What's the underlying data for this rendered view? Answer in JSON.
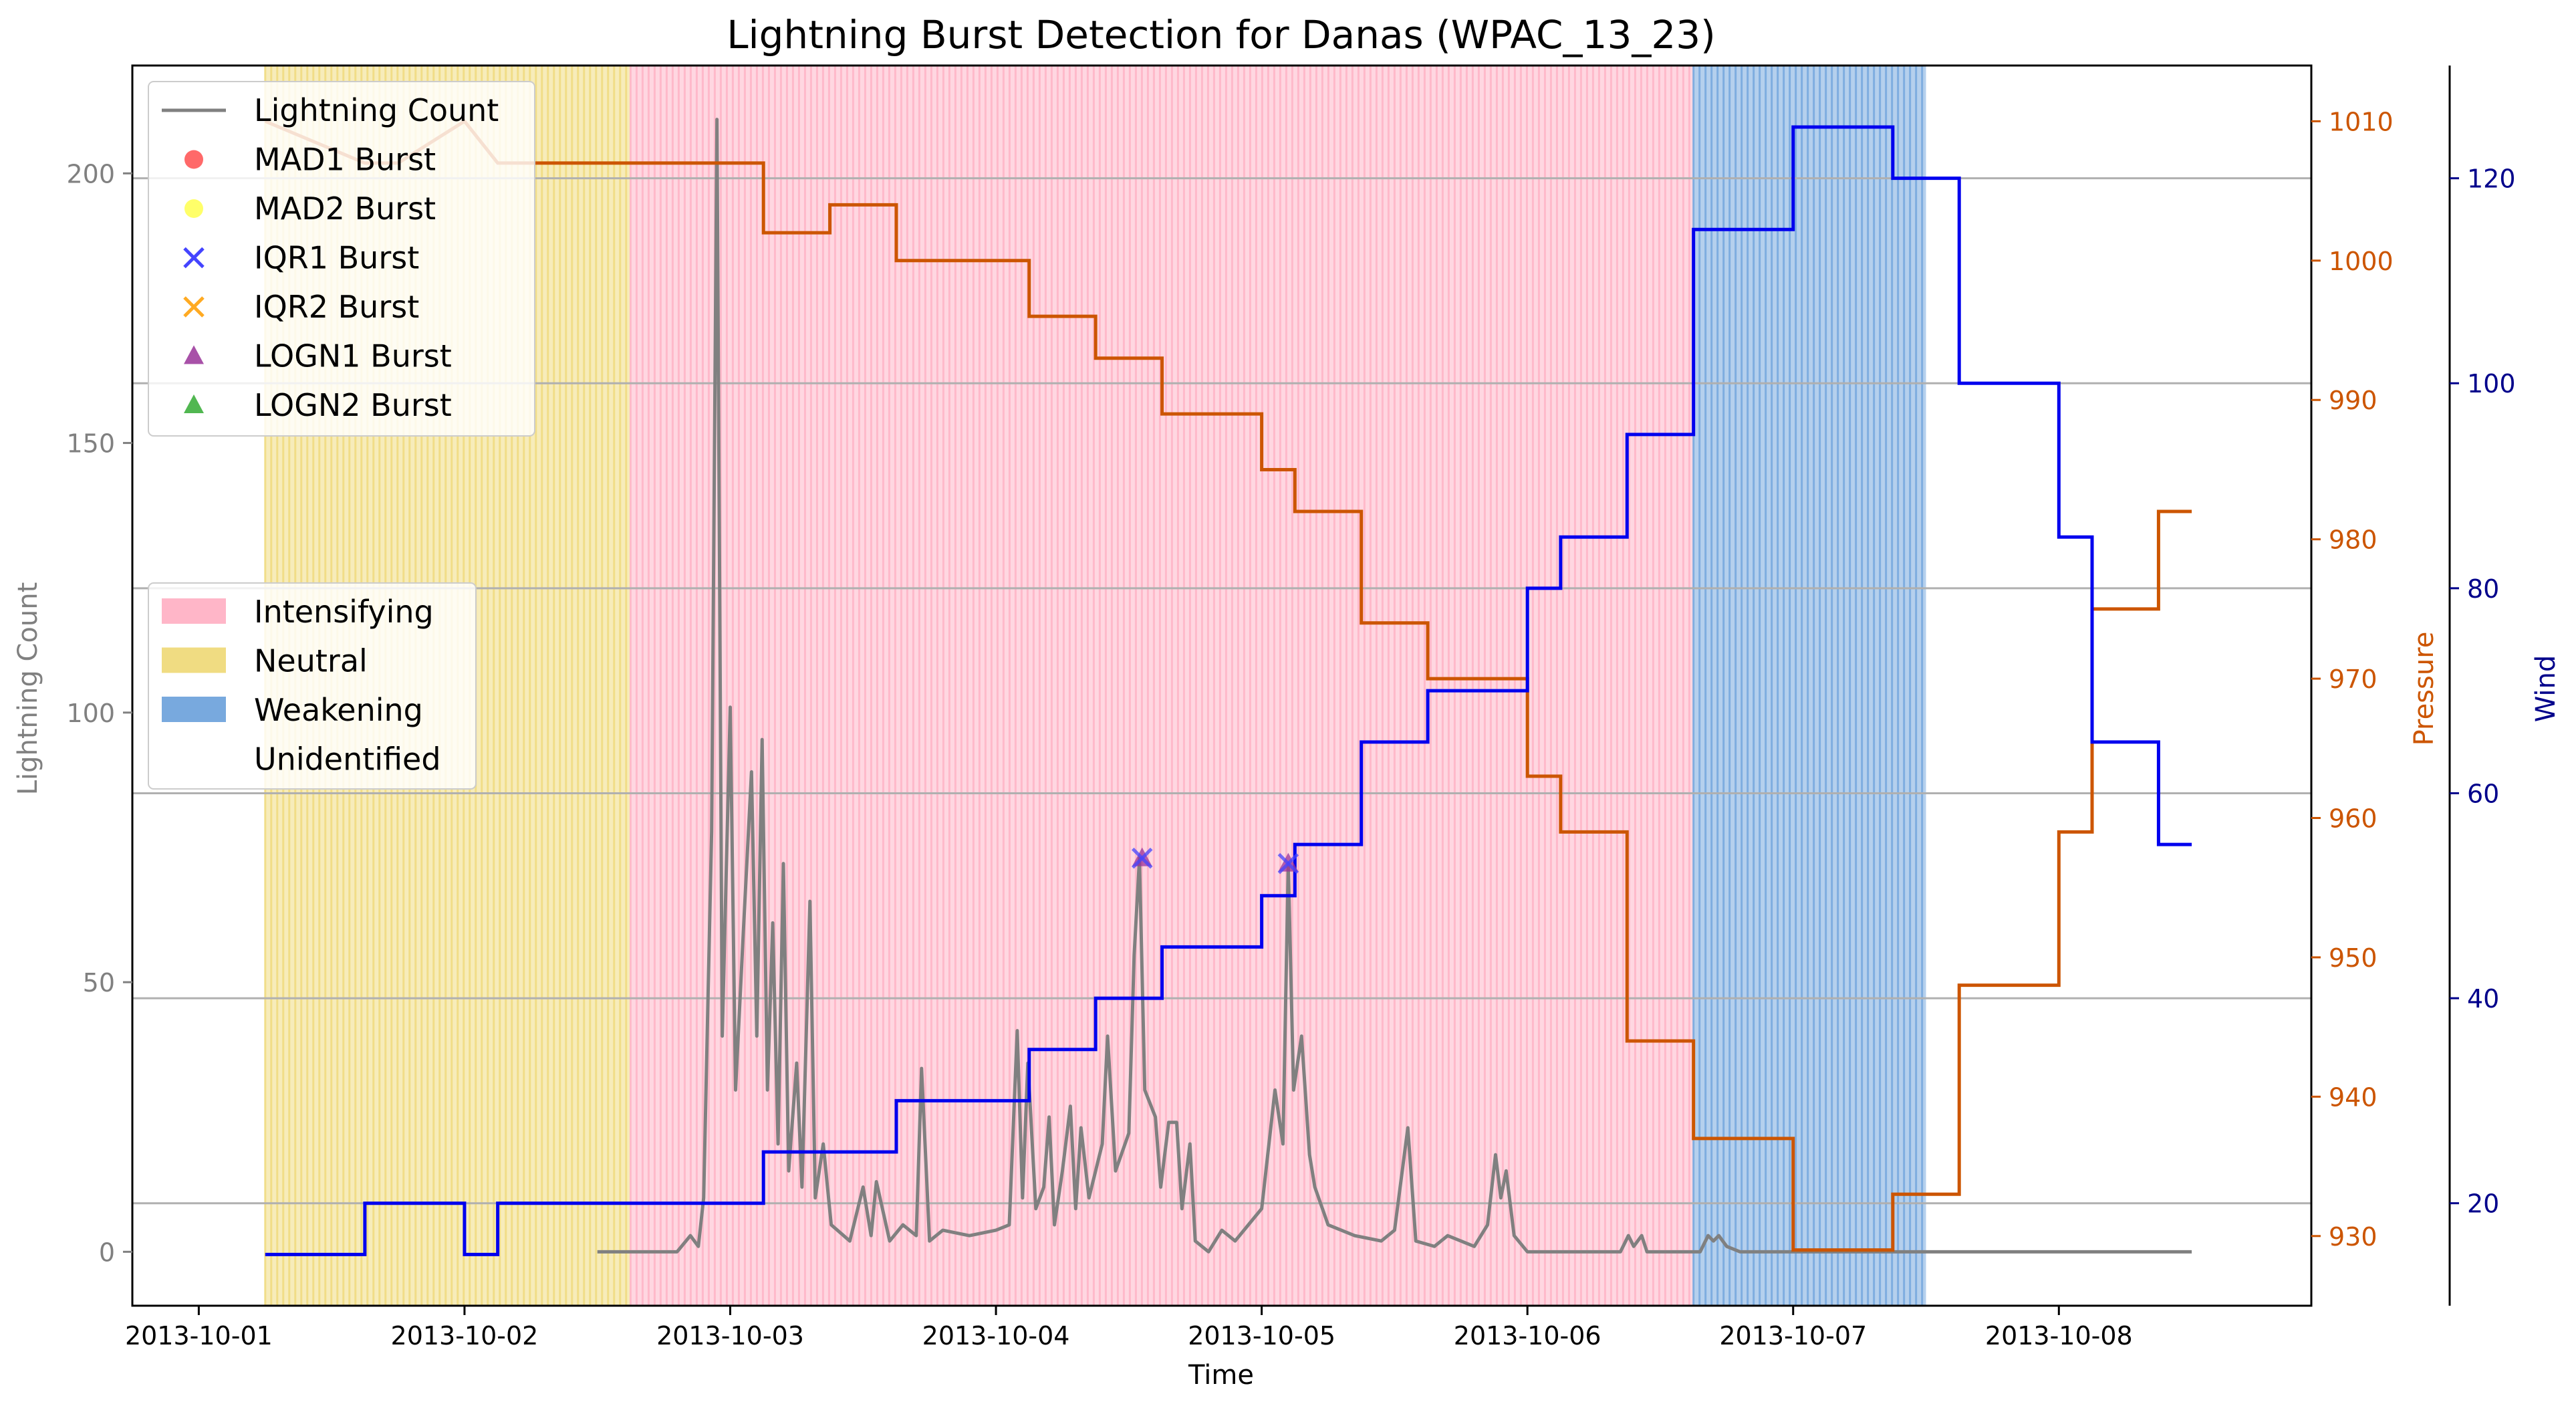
{
  "chart_data": {
    "type": "line",
    "title": "Lightning Burst Detection for Danas (WPAC_13_23)",
    "xlabel": "Time",
    "ylabel_left": "Lightning Count",
    "ylabel_pressure": "Pressure",
    "ylabel_wind": "Wind",
    "x_ticks": [
      "2013-10-01",
      "2013-10-02",
      "2013-10-03",
      "2013-10-04",
      "2013-10-05",
      "2013-10-06",
      "2013-10-07",
      "2013-10-08"
    ],
    "ylim_count": [
      -10,
      220
    ],
    "yticks_count": [
      0,
      50,
      100,
      150,
      200
    ],
    "ylim_pressure": [
      925,
      1014
    ],
    "yticks_pressure": [
      930,
      940,
      950,
      960,
      970,
      980,
      990,
      1000,
      1010
    ],
    "ylim_wind": [
      10,
      131
    ],
    "yticks_wind": [
      20,
      40,
      60,
      80,
      100,
      120
    ],
    "grid": "horizontal lines at wind ticks",
    "colors": {
      "lightning": "#808080",
      "pressure": "#cc5500",
      "wind": "#0000ee",
      "intensifying": "#ffb6c8",
      "neutral": "#f0dc82",
      "weakening": "#78a9de",
      "mad1": "#ff4444",
      "mad2": "#ffff44",
      "iqr1": "#4444ff",
      "iqr2": "#ffaa22",
      "logn1": "#993399",
      "logn2": "#33aa33"
    },
    "phases": [
      {
        "phase": "Neutral",
        "start": 0.25,
        "end": 1.625
      },
      {
        "phase": "Intensifying",
        "start": 1.625,
        "end": 5.625
      },
      {
        "phase": "Weakening",
        "start": 5.625,
        "end": 6.5
      }
    ],
    "pressure_steps": [
      [
        0.25,
        1010
      ],
      [
        0.625,
        1007
      ],
      [
        0.75,
        1007
      ],
      [
        1.0,
        1010
      ],
      [
        1.125,
        1007
      ],
      [
        2.125,
        1007
      ],
      [
        2.125,
        1002
      ],
      [
        2.375,
        1002
      ],
      [
        2.375,
        1004
      ],
      [
        2.625,
        1004
      ],
      [
        2.625,
        1000
      ],
      [
        3.125,
        1000
      ],
      [
        3.125,
        996
      ],
      [
        3.375,
        996
      ],
      [
        3.375,
        993
      ],
      [
        3.625,
        993
      ],
      [
        3.625,
        989
      ],
      [
        4.0,
        989
      ],
      [
        4.0,
        985
      ],
      [
        4.125,
        985
      ],
      [
        4.125,
        982
      ],
      [
        4.375,
        982
      ],
      [
        4.375,
        974
      ],
      [
        4.625,
        974
      ],
      [
        4.625,
        970
      ],
      [
        5.0,
        970
      ],
      [
        5.0,
        963
      ],
      [
        5.125,
        963
      ],
      [
        5.125,
        959
      ],
      [
        5.375,
        959
      ],
      [
        5.375,
        944
      ],
      [
        5.625,
        944
      ],
      [
        5.625,
        937
      ],
      [
        6.0,
        937
      ],
      [
        6.0,
        929
      ],
      [
        6.375,
        929
      ],
      [
        6.375,
        933
      ],
      [
        6.625,
        933
      ],
      [
        6.625,
        948
      ],
      [
        7.0,
        948
      ],
      [
        7.0,
        959
      ],
      [
        7.125,
        959
      ],
      [
        7.125,
        975
      ],
      [
        7.375,
        975
      ],
      [
        7.375,
        982
      ],
      [
        7.5,
        982
      ]
    ],
    "wind_steps": [
      [
        0.25,
        15
      ],
      [
        0.625,
        15
      ],
      [
        0.625,
        20
      ],
      [
        1.0,
        20
      ],
      [
        1.0,
        15
      ],
      [
        1.125,
        15
      ],
      [
        1.125,
        20
      ],
      [
        2.125,
        20
      ],
      [
        2.125,
        25
      ],
      [
        2.625,
        25
      ],
      [
        2.625,
        30
      ],
      [
        3.125,
        30
      ],
      [
        3.125,
        35
      ],
      [
        3.375,
        35
      ],
      [
        3.375,
        40
      ],
      [
        3.625,
        40
      ],
      [
        3.625,
        45
      ],
      [
        4.0,
        45
      ],
      [
        4.0,
        50
      ],
      [
        4.125,
        50
      ],
      [
        4.125,
        55
      ],
      [
        4.375,
        55
      ],
      [
        4.375,
        65
      ],
      [
        4.625,
        65
      ],
      [
        4.625,
        70
      ],
      [
        5.0,
        70
      ],
      [
        5.0,
        80
      ],
      [
        5.125,
        80
      ],
      [
        5.125,
        85
      ],
      [
        5.375,
        85
      ],
      [
        5.375,
        95
      ],
      [
        5.625,
        95
      ],
      [
        5.625,
        115
      ],
      [
        6.0,
        115
      ],
      [
        6.0,
        125
      ],
      [
        6.375,
        125
      ],
      [
        6.375,
        120
      ],
      [
        6.625,
        120
      ],
      [
        6.625,
        100
      ],
      [
        7.0,
        100
      ],
      [
        7.0,
        85
      ],
      [
        7.125,
        85
      ],
      [
        7.125,
        65
      ],
      [
        7.375,
        65
      ],
      [
        7.375,
        55
      ],
      [
        7.5,
        55
      ]
    ],
    "lightning_peaks": [
      [
        1.5,
        0
      ],
      [
        1.7,
        0
      ],
      [
        1.8,
        0
      ],
      [
        1.85,
        3
      ],
      [
        1.88,
        1
      ],
      [
        1.9,
        10
      ],
      [
        1.93,
        78
      ],
      [
        1.95,
        210
      ],
      [
        1.97,
        40
      ],
      [
        2.0,
        101
      ],
      [
        2.02,
        30
      ],
      [
        2.05,
        60
      ],
      [
        2.08,
        89
      ],
      [
        2.1,
        40
      ],
      [
        2.12,
        95
      ],
      [
        2.14,
        30
      ],
      [
        2.16,
        61
      ],
      [
        2.18,
        20
      ],
      [
        2.2,
        72
      ],
      [
        2.22,
        15
      ],
      [
        2.25,
        35
      ],
      [
        2.27,
        12
      ],
      [
        2.3,
        65
      ],
      [
        2.32,
        10
      ],
      [
        2.35,
        20
      ],
      [
        2.38,
        5
      ],
      [
        2.45,
        2
      ],
      [
        2.5,
        12
      ],
      [
        2.53,
        3
      ],
      [
        2.55,
        13
      ],
      [
        2.6,
        2
      ],
      [
        2.65,
        5
      ],
      [
        2.7,
        3
      ],
      [
        2.72,
        34
      ],
      [
        2.75,
        2
      ],
      [
        2.8,
        4
      ],
      [
        2.9,
        3
      ],
      [
        3.0,
        4
      ],
      [
        3.05,
        5
      ],
      [
        3.08,
        41
      ],
      [
        3.1,
        10
      ],
      [
        3.12,
        35
      ],
      [
        3.15,
        8
      ],
      [
        3.18,
        12
      ],
      [
        3.2,
        25
      ],
      [
        3.22,
        5
      ],
      [
        3.25,
        15
      ],
      [
        3.28,
        27
      ],
      [
        3.3,
        8
      ],
      [
        3.32,
        23
      ],
      [
        3.35,
        10
      ],
      [
        3.4,
        20
      ],
      [
        3.42,
        40
      ],
      [
        3.45,
        15
      ],
      [
        3.5,
        22
      ],
      [
        3.52,
        55
      ],
      [
        3.54,
        73
      ],
      [
        3.56,
        30
      ],
      [
        3.6,
        25
      ],
      [
        3.62,
        12
      ],
      [
        3.65,
        24
      ],
      [
        3.68,
        24
      ],
      [
        3.7,
        8
      ],
      [
        3.73,
        20
      ],
      [
        3.75,
        2
      ],
      [
        3.8,
        0
      ],
      [
        3.85,
        4
      ],
      [
        3.9,
        2
      ],
      [
        3.95,
        5
      ],
      [
        4.0,
        8
      ],
      [
        4.05,
        30
      ],
      [
        4.08,
        20
      ],
      [
        4.1,
        72
      ],
      [
        4.12,
        30
      ],
      [
        4.15,
        40
      ],
      [
        4.18,
        18
      ],
      [
        4.2,
        12
      ],
      [
        4.25,
        5
      ],
      [
        4.35,
        3
      ],
      [
        4.45,
        2
      ],
      [
        4.5,
        4
      ],
      [
        4.55,
        23
      ],
      [
        4.58,
        2
      ],
      [
        4.65,
        1
      ],
      [
        4.7,
        3
      ],
      [
        4.8,
        1
      ],
      [
        4.85,
        5
      ],
      [
        4.88,
        18
      ],
      [
        4.9,
        10
      ],
      [
        4.92,
        15
      ],
      [
        4.95,
        3
      ],
      [
        5.0,
        0
      ],
      [
        5.35,
        0
      ],
      [
        5.38,
        3
      ],
      [
        5.4,
        1
      ],
      [
        5.43,
        3
      ],
      [
        5.45,
        0
      ],
      [
        5.65,
        0
      ],
      [
        5.68,
        3
      ],
      [
        5.7,
        2
      ],
      [
        5.72,
        3
      ],
      [
        5.75,
        1
      ],
      [
        5.8,
        0
      ],
      [
        6.0,
        0
      ],
      [
        7.5,
        0
      ]
    ],
    "bursts": [
      {
        "x": 3.55,
        "y": 73
      },
      {
        "x": 4.1,
        "y": 72
      }
    ],
    "legend_markers": [
      {
        "label": "Lightning Count",
        "kind": "line",
        "color": "#808080"
      },
      {
        "label": "MAD1 Burst",
        "kind": "circle",
        "color": "#ff4444"
      },
      {
        "label": "MAD2 Burst",
        "kind": "circle",
        "color": "#ffff44"
      },
      {
        "label": "IQR1 Burst",
        "kind": "x",
        "color": "#4444ff"
      },
      {
        "label": "IQR2 Burst",
        "kind": "x",
        "color": "#ffaa22"
      },
      {
        "label": "LOGN1 Burst",
        "kind": "triangle",
        "color": "#993399"
      },
      {
        "label": "LOGN2 Burst",
        "kind": "triangle",
        "color": "#33aa33"
      }
    ],
    "legend_phases": [
      {
        "label": "Intensifying",
        "color": "#ffb6c8"
      },
      {
        "label": "Neutral",
        "color": "#f0dc82"
      },
      {
        "label": "Weakening",
        "color": "#78a9de"
      },
      {
        "label": "Unidentified",
        "color": "none"
      }
    ],
    "legend_placement": "upper-left and middle-left"
  }
}
